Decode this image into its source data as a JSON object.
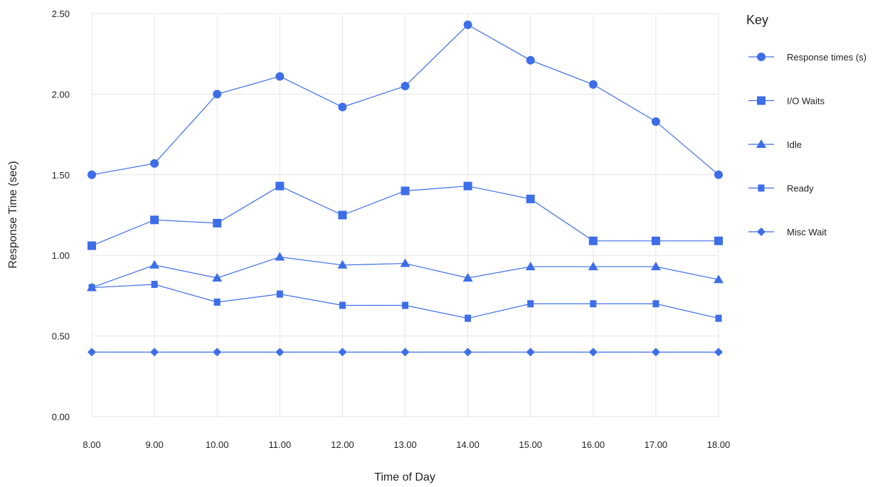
{
  "chart_data": {
    "type": "line",
    "xlabel": "Time of Day",
    "ylabel": "Response Time (sec)",
    "x": [
      "8.00",
      "9.00",
      "10.00",
      "11.00",
      "12.00",
      "13.00",
      "14.00",
      "15.00",
      "16.00",
      "17.00",
      "18.00"
    ],
    "yticks": [
      "0.00",
      "0.50",
      "1.00",
      "1.50",
      "2.00",
      "2.50"
    ],
    "ylim": [
      0,
      2.5
    ],
    "grid": true,
    "legend_title": "Key",
    "legend_position": "right",
    "series_color": "#3d6ee8",
    "series": [
      {
        "name": "Response times (s)",
        "marker": "circle",
        "values": [
          1.5,
          1.57,
          2.0,
          2.11,
          1.92,
          2.05,
          2.43,
          2.21,
          2.06,
          1.83,
          1.5
        ]
      },
      {
        "name": "I/O Waits",
        "marker": "square",
        "values": [
          1.06,
          1.22,
          1.2,
          1.43,
          1.25,
          1.4,
          1.43,
          1.35,
          1.09,
          1.09,
          1.09
        ]
      },
      {
        "name": "Idle",
        "marker": "triangle",
        "values": [
          0.8,
          0.94,
          0.86,
          0.99,
          0.94,
          0.95,
          0.86,
          0.93,
          0.93,
          0.93,
          0.85
        ]
      },
      {
        "name": "Ready",
        "marker": "small-square",
        "values": [
          0.8,
          0.82,
          0.71,
          0.76,
          0.69,
          0.69,
          0.61,
          0.7,
          0.7,
          0.7,
          0.61
        ]
      },
      {
        "name": "Misc Wait",
        "marker": "diamond",
        "values": [
          0.4,
          0.4,
          0.4,
          0.4,
          0.4,
          0.4,
          0.4,
          0.4,
          0.4,
          0.4,
          0.4
        ]
      }
    ]
  }
}
